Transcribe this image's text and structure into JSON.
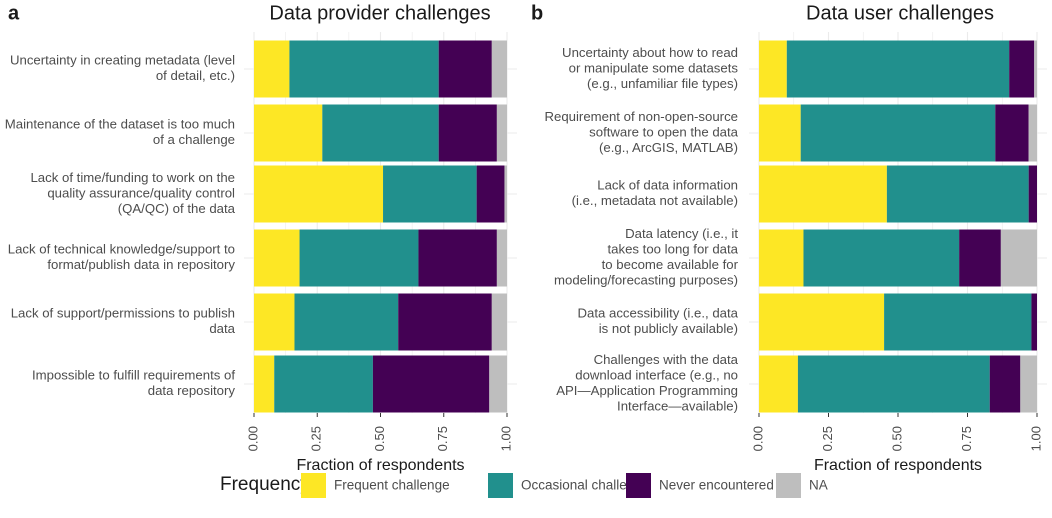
{
  "colors": {
    "frequent": "#FDE725",
    "occasional": "#21908D",
    "never": "#440154",
    "na": "#BEBEBE",
    "panel_bg": "#FFFFFF",
    "grid": "#EBEBEB",
    "text": "#4D4D4D",
    "title_text": "#1A1A1A"
  },
  "legend": {
    "title": "Frequency",
    "items": [
      {
        "key": "frequent",
        "label": "Frequent challenge"
      },
      {
        "key": "occasional",
        "label": "Occasional challenge"
      },
      {
        "key": "never",
        "label": "Never encountered"
      },
      {
        "key": "na",
        "label": "NA"
      }
    ]
  },
  "chart_data": [
    {
      "panel_label": "a",
      "type": "bar",
      "orientation": "horizontal",
      "stacked": true,
      "title": "Data provider challenges",
      "xlabel": "Fraction of respondents",
      "ylabel": "",
      "xlim": [
        0,
        1
      ],
      "x_ticks": [
        "0.00",
        "0.25",
        "0.50",
        "0.75",
        "1.00"
      ],
      "grid": true,
      "categories": [
        [
          "Uncertainty in creating metadata (level",
          "of detail, etc.)"
        ],
        [
          "Maintenance of the dataset is too much",
          "of a challenge"
        ],
        [
          "Lack of time/funding to work on the",
          "quality assurance/quality control",
          "(QA/QC) of the data"
        ],
        [
          "Lack of technical knowledge/support to",
          "format/publish data in repository"
        ],
        [
          "Lack of support/permissions to publish",
          "data"
        ],
        [
          "Impossible to fulfill requirements of",
          "data repository"
        ]
      ],
      "series": [
        {
          "name": "Frequent challenge",
          "key": "frequent",
          "values": [
            0.14,
            0.27,
            0.51,
            0.18,
            0.16,
            0.08
          ]
        },
        {
          "name": "Occasional challenge",
          "key": "occasional",
          "values": [
            0.59,
            0.46,
            0.37,
            0.47,
            0.41,
            0.39
          ]
        },
        {
          "name": "Never encountered",
          "key": "never",
          "values": [
            0.21,
            0.23,
            0.11,
            0.31,
            0.37,
            0.46
          ]
        },
        {
          "name": "NA",
          "key": "na",
          "values": [
            0.06,
            0.04,
            0.01,
            0.04,
            0.06,
            0.07
          ]
        }
      ]
    },
    {
      "panel_label": "b",
      "type": "bar",
      "orientation": "horizontal",
      "stacked": true,
      "title": "Data user challenges",
      "xlabel": "Fraction of respondents",
      "ylabel": "",
      "xlim": [
        0,
        1
      ],
      "x_ticks": [
        "0.00",
        "0.25",
        "0.50",
        "0.75",
        "1.00"
      ],
      "grid": true,
      "categories": [
        [
          "Uncertainty about how to read",
          "or manipulate some datasets",
          "(e.g., unfamiliar file types)"
        ],
        [
          "Requirement of non-open-source",
          "software to open the data",
          "(e.g., ArcGIS, MATLAB)"
        ],
        [
          "Lack of data information",
          "(i.e., metadata not available)"
        ],
        [
          "Data latency (i.e., it",
          "takes too long for data",
          "to become available for",
          "modeling/forecasting purposes)"
        ],
        [
          "Data accessibility (i.e., data",
          "is not publicly available)"
        ],
        [
          "Challenges with the data",
          "download interface (e.g., no",
          "API—Application Programming",
          "Interface—available)"
        ]
      ],
      "series": [
        {
          "name": "Frequent challenge",
          "key": "frequent",
          "values": [
            0.1,
            0.15,
            0.46,
            0.16,
            0.45,
            0.14
          ]
        },
        {
          "name": "Occasional challenge",
          "key": "occasional",
          "values": [
            0.8,
            0.7,
            0.51,
            0.56,
            0.53,
            0.69
          ]
        },
        {
          "name": "Never encountered",
          "key": "never",
          "values": [
            0.09,
            0.12,
            0.03,
            0.15,
            0.02,
            0.11
          ]
        },
        {
          "name": "NA",
          "key": "na",
          "values": [
            0.01,
            0.03,
            0.0,
            0.13,
            0.0,
            0.06
          ]
        }
      ]
    }
  ]
}
